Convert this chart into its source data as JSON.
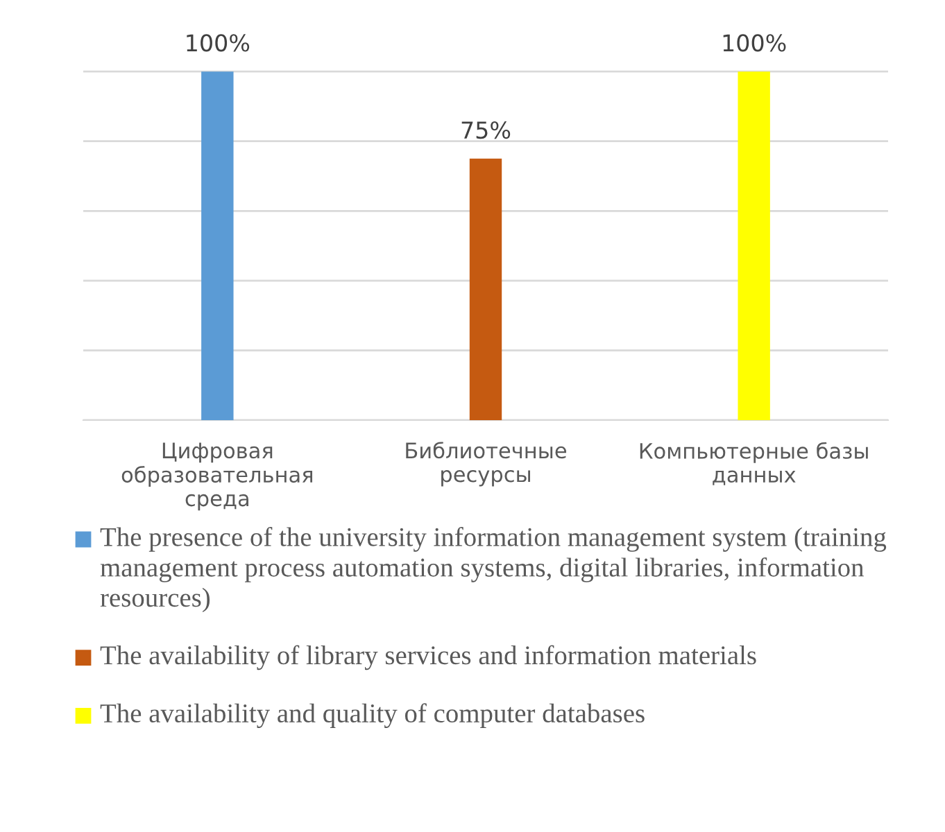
{
  "chart_data": {
    "type": "bar",
    "categories": [
      "Цифровая образовательная среда",
      "Библиотечные ресурсы",
      "Компьютерные базы данных"
    ],
    "series": [
      {
        "name": "The presence of the university information management system (training management process automation systems, digital libraries, information resources)",
        "color": "#5b9bd5",
        "values": [
          100,
          null,
          null
        ],
        "value_labels": [
          "100%",
          null,
          null
        ]
      },
      {
        "name": "The availability of library services and information materials",
        "color": "#c55a11",
        "values": [
          null,
          75,
          null
        ],
        "value_labels": [
          null,
          "75%",
          null
        ]
      },
      {
        "name": "The availability and quality of computer databases",
        "color": "#ffff00",
        "values": [
          null,
          null,
          100
        ],
        "value_labels": [
          null,
          null,
          "100%"
        ]
      }
    ],
    "grid": "y",
    "legend": "bottom",
    "tick_labels": "x"
  }
}
